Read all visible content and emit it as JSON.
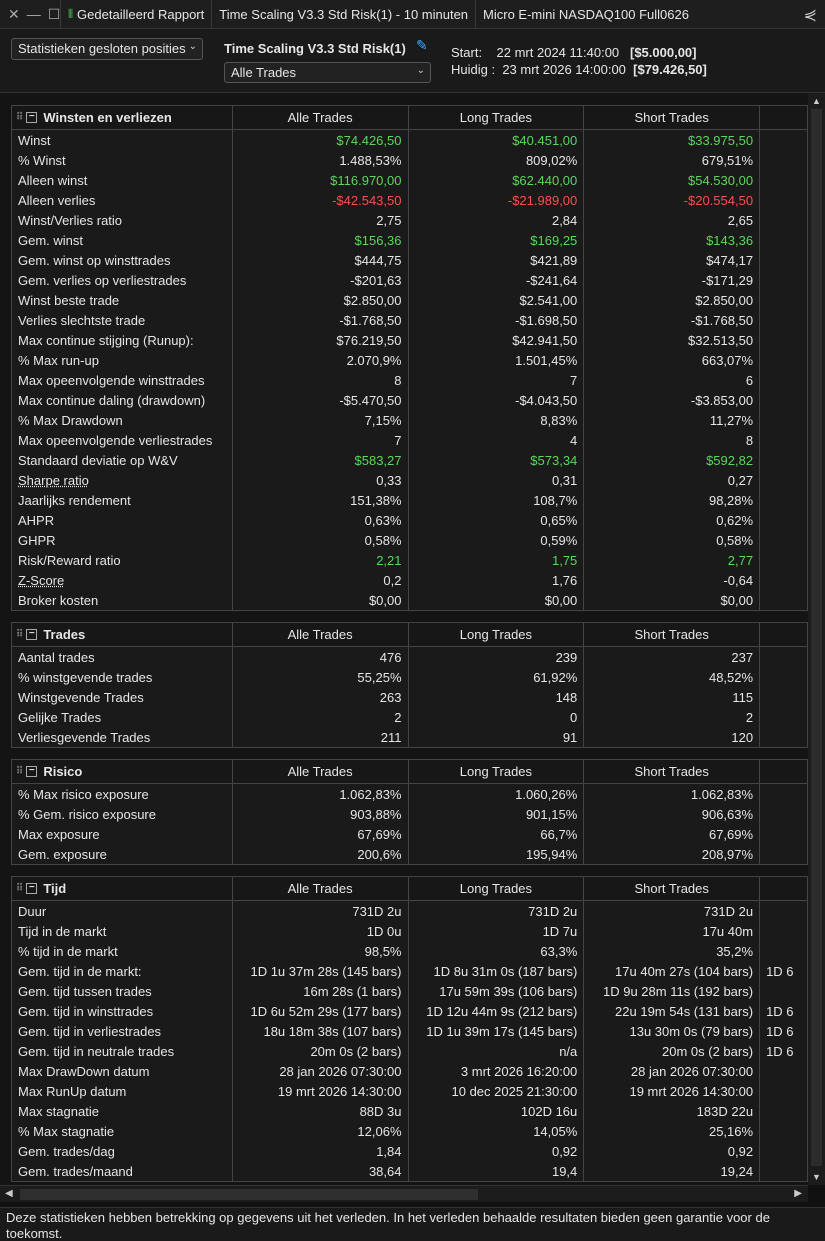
{
  "titlebar": {
    "tab1": "Gedetailleerd Rapport",
    "tab2": "Time Scaling V3.3 Std Risk(1) - 10 minuten",
    "tab3": "Micro E-mini NASDAQ100 Full0626"
  },
  "header": {
    "stats_dropdown": "Statistieken gesloten posities",
    "strategy_title": "Time Scaling V3.3 Std Risk(1)",
    "trades_dropdown": "Alle Trades",
    "start_label": "Start:",
    "start_date": "22 mrt 2024 11:40:00",
    "start_value": "[$5.000,00]",
    "current_label": "Huidig :",
    "current_date": "23 mrt 2026 14:00:00",
    "current_value": "[$79.426,50]"
  },
  "columns": [
    "Alle Trades",
    "Long Trades",
    "Short Trades"
  ],
  "sections": {
    "wv": {
      "title": "Winsten en verliezen",
      "rows": [
        {
          "label": "Winst",
          "values": [
            "$74.426,50",
            "$40.451,00",
            "$33.975,50"
          ],
          "cls": "pos"
        },
        {
          "label": "% Winst",
          "values": [
            "1.488,53%",
            "809,02%",
            "679,51%"
          ],
          "cls": ""
        },
        {
          "label": "Alleen winst",
          "values": [
            "$116.970,00",
            "$62.440,00",
            "$54.530,00"
          ],
          "cls": "pos"
        },
        {
          "label": "Alleen verlies",
          "values": [
            "-$42.543,50",
            "-$21.989,00",
            "-$20.554,50"
          ],
          "cls": "neg"
        },
        {
          "label": "Winst/Verlies ratio",
          "values": [
            "2,75",
            "2,84",
            "2,65"
          ],
          "cls": ""
        },
        {
          "label": "Gem. winst",
          "values": [
            "$156,36",
            "$169,25",
            "$143,36"
          ],
          "cls": "pos"
        },
        {
          "label": "Gem. winst op winsttrades",
          "values": [
            "$444,75",
            "$421,89",
            "$474,17"
          ],
          "cls": ""
        },
        {
          "label": "Gem. verlies op verliestrades",
          "values": [
            "-$201,63",
            "-$241,64",
            "-$171,29"
          ],
          "cls": ""
        },
        {
          "label": "Winst beste trade",
          "values": [
            "$2.850,00",
            "$2.541,00",
            "$2.850,00"
          ],
          "cls": ""
        },
        {
          "label": "Verlies slechtste trade",
          "values": [
            "-$1.768,50",
            "-$1.698,50",
            "-$1.768,50"
          ],
          "cls": ""
        },
        {
          "label": "Max continue stijging (Runup):",
          "values": [
            "$76.219,50",
            "$42.941,50",
            "$32.513,50"
          ],
          "cls": ""
        },
        {
          "label": "% Max run-up",
          "values": [
            "2.070,9%",
            "1.501,45%",
            "663,07%"
          ],
          "cls": ""
        },
        {
          "label": "Max opeenvolgende winsttrades",
          "values": [
            "8",
            "7",
            "6"
          ],
          "cls": ""
        },
        {
          "label": "Max continue daling (drawdown)",
          "values": [
            "-$5.470,50",
            "-$4.043,50",
            "-$3.853,00"
          ],
          "cls": ""
        },
        {
          "label": "% Max Drawdown",
          "values": [
            "7,15%",
            "8,83%",
            "11,27%"
          ],
          "cls": ""
        },
        {
          "label": "Max opeenvolgende verliestrades",
          "values": [
            "7",
            "4",
            "8"
          ],
          "cls": ""
        },
        {
          "label": "Standaard deviatie op W&V",
          "values": [
            "$583,27",
            "$573,34",
            "$592,82"
          ],
          "cls": "pos"
        },
        {
          "label": "Sharpe ratio",
          "values": [
            "0,33",
            "0,31",
            "0,27"
          ],
          "cls": "",
          "ul": true
        },
        {
          "label": "Jaarlijks rendement",
          "values": [
            "151,38%",
            "108,7%",
            "98,28%"
          ],
          "cls": ""
        },
        {
          "label": "AHPR",
          "values": [
            "0,63%",
            "0,65%",
            "0,62%"
          ],
          "cls": ""
        },
        {
          "label": "GHPR",
          "values": [
            "0,58%",
            "0,59%",
            "0,58%"
          ],
          "cls": ""
        },
        {
          "label": "Risk/Reward ratio",
          "values": [
            "2,21",
            "1,75",
            "2,77"
          ],
          "cls": "pos"
        },
        {
          "label": "Z-Score",
          "values": [
            "0,2",
            "1,76",
            "-0,64"
          ],
          "cls": "",
          "ul": true
        },
        {
          "label": "Broker kosten",
          "values": [
            "$0,00",
            "$0,00",
            "$0,00"
          ],
          "cls": ""
        }
      ]
    },
    "trades": {
      "title": "Trades",
      "rows": [
        {
          "label": "Aantal trades",
          "values": [
            "476",
            "239",
            "237"
          ],
          "cls": ""
        },
        {
          "label": "% winstgevende trades",
          "values": [
            "55,25%",
            "61,92%",
            "48,52%"
          ],
          "cls": ""
        },
        {
          "label": "Winstgevende Trades",
          "values": [
            "263",
            "148",
            "115"
          ],
          "cls": ""
        },
        {
          "label": "Gelijke Trades",
          "values": [
            "2",
            "0",
            "2"
          ],
          "cls": ""
        },
        {
          "label": "Verliesgevende Trades",
          "values": [
            "211",
            "91",
            "120"
          ],
          "cls": ""
        }
      ]
    },
    "risico": {
      "title": "Risico",
      "rows": [
        {
          "label": "% Max risico exposure",
          "values": [
            "1.062,83%",
            "1.060,26%",
            "1.062,83%"
          ],
          "cls": ""
        },
        {
          "label": "% Gem. risico exposure",
          "values": [
            "903,88%",
            "901,15%",
            "906,63%"
          ],
          "cls": ""
        },
        {
          "label": "Max exposure",
          "values": [
            "67,69%",
            "66,7%",
            "67,69%"
          ],
          "cls": ""
        },
        {
          "label": "Gem. exposure",
          "values": [
            "200,6%",
            "195,94%",
            "208,97%"
          ],
          "cls": ""
        }
      ]
    },
    "tijd": {
      "title": "Tijd",
      "rows": [
        {
          "label": "Duur",
          "values": [
            "731D 2u",
            "731D 2u",
            "731D 2u"
          ],
          "cls": ""
        },
        {
          "label": "Tijd in de markt",
          "values": [
            "1D 0u",
            "1D 7u",
            "17u 40m"
          ],
          "cls": ""
        },
        {
          "label": "% tijd in de markt",
          "values": [
            "98,5%",
            "63,3%",
            "35,2%"
          ],
          "cls": ""
        },
        {
          "label": "Gem. tijd in de markt:",
          "values": [
            "1D 1u 37m 28s (145 bars)",
            "1D 8u 31m 0s (187 bars)",
            "17u 40m 27s (104 bars)"
          ],
          "extra": "1D 6",
          "cls": ""
        },
        {
          "label": "Gem. tijd tussen trades",
          "values": [
            "16m 28s (1 bars)",
            "17u 59m 39s (106 bars)",
            "1D 9u 28m 11s (192 bars)"
          ],
          "cls": ""
        },
        {
          "label": "Gem. tijd in winsttrades",
          "values": [
            "1D 6u 52m 29s (177 bars)",
            "1D 12u 44m 9s (212 bars)",
            "22u 19m 54s (131 bars)"
          ],
          "extra": "1D 6",
          "cls": ""
        },
        {
          "label": "Gem. tijd in verliestrades",
          "values": [
            "18u 18m 38s (107 bars)",
            "1D 1u 39m 17s (145 bars)",
            "13u 30m 0s (79 bars)"
          ],
          "extra": "1D 6",
          "cls": ""
        },
        {
          "label": "Gem. tijd in neutrale trades",
          "values": [
            "20m 0s (2 bars)",
            "n/a",
            "20m 0s (2 bars)"
          ],
          "extra": "1D 6",
          "cls": ""
        },
        {
          "label": "Max DrawDown datum",
          "values": [
            "28 jan 2026 07:30:00",
            "3 mrt 2026 16:20:00",
            "28 jan 2026 07:30:00"
          ],
          "cls": ""
        },
        {
          "label": "Max RunUp datum",
          "values": [
            "19 mrt 2026 14:30:00",
            "10 dec 2025 21:30:00",
            "19 mrt 2026 14:30:00"
          ],
          "cls": ""
        },
        {
          "label": "Max stagnatie",
          "values": [
            "88D 3u",
            "102D 16u",
            "183D 22u"
          ],
          "cls": ""
        },
        {
          "label": "% Max stagnatie",
          "values": [
            "12,06%",
            "14,05%",
            "25,16%"
          ],
          "cls": ""
        },
        {
          "label": "Gem. trades/dag",
          "values": [
            "1,84",
            "0,92",
            "0,92"
          ],
          "cls": ""
        },
        {
          "label": "Gem. trades/maand",
          "values": [
            "38,64",
            "19,4",
            "19,24"
          ],
          "cls": ""
        }
      ]
    }
  },
  "footer": "Deze statistieken hebben betrekking op gegevens uit het verleden. In het verleden behaalde resultaten bieden geen garantie voor de toekomst."
}
